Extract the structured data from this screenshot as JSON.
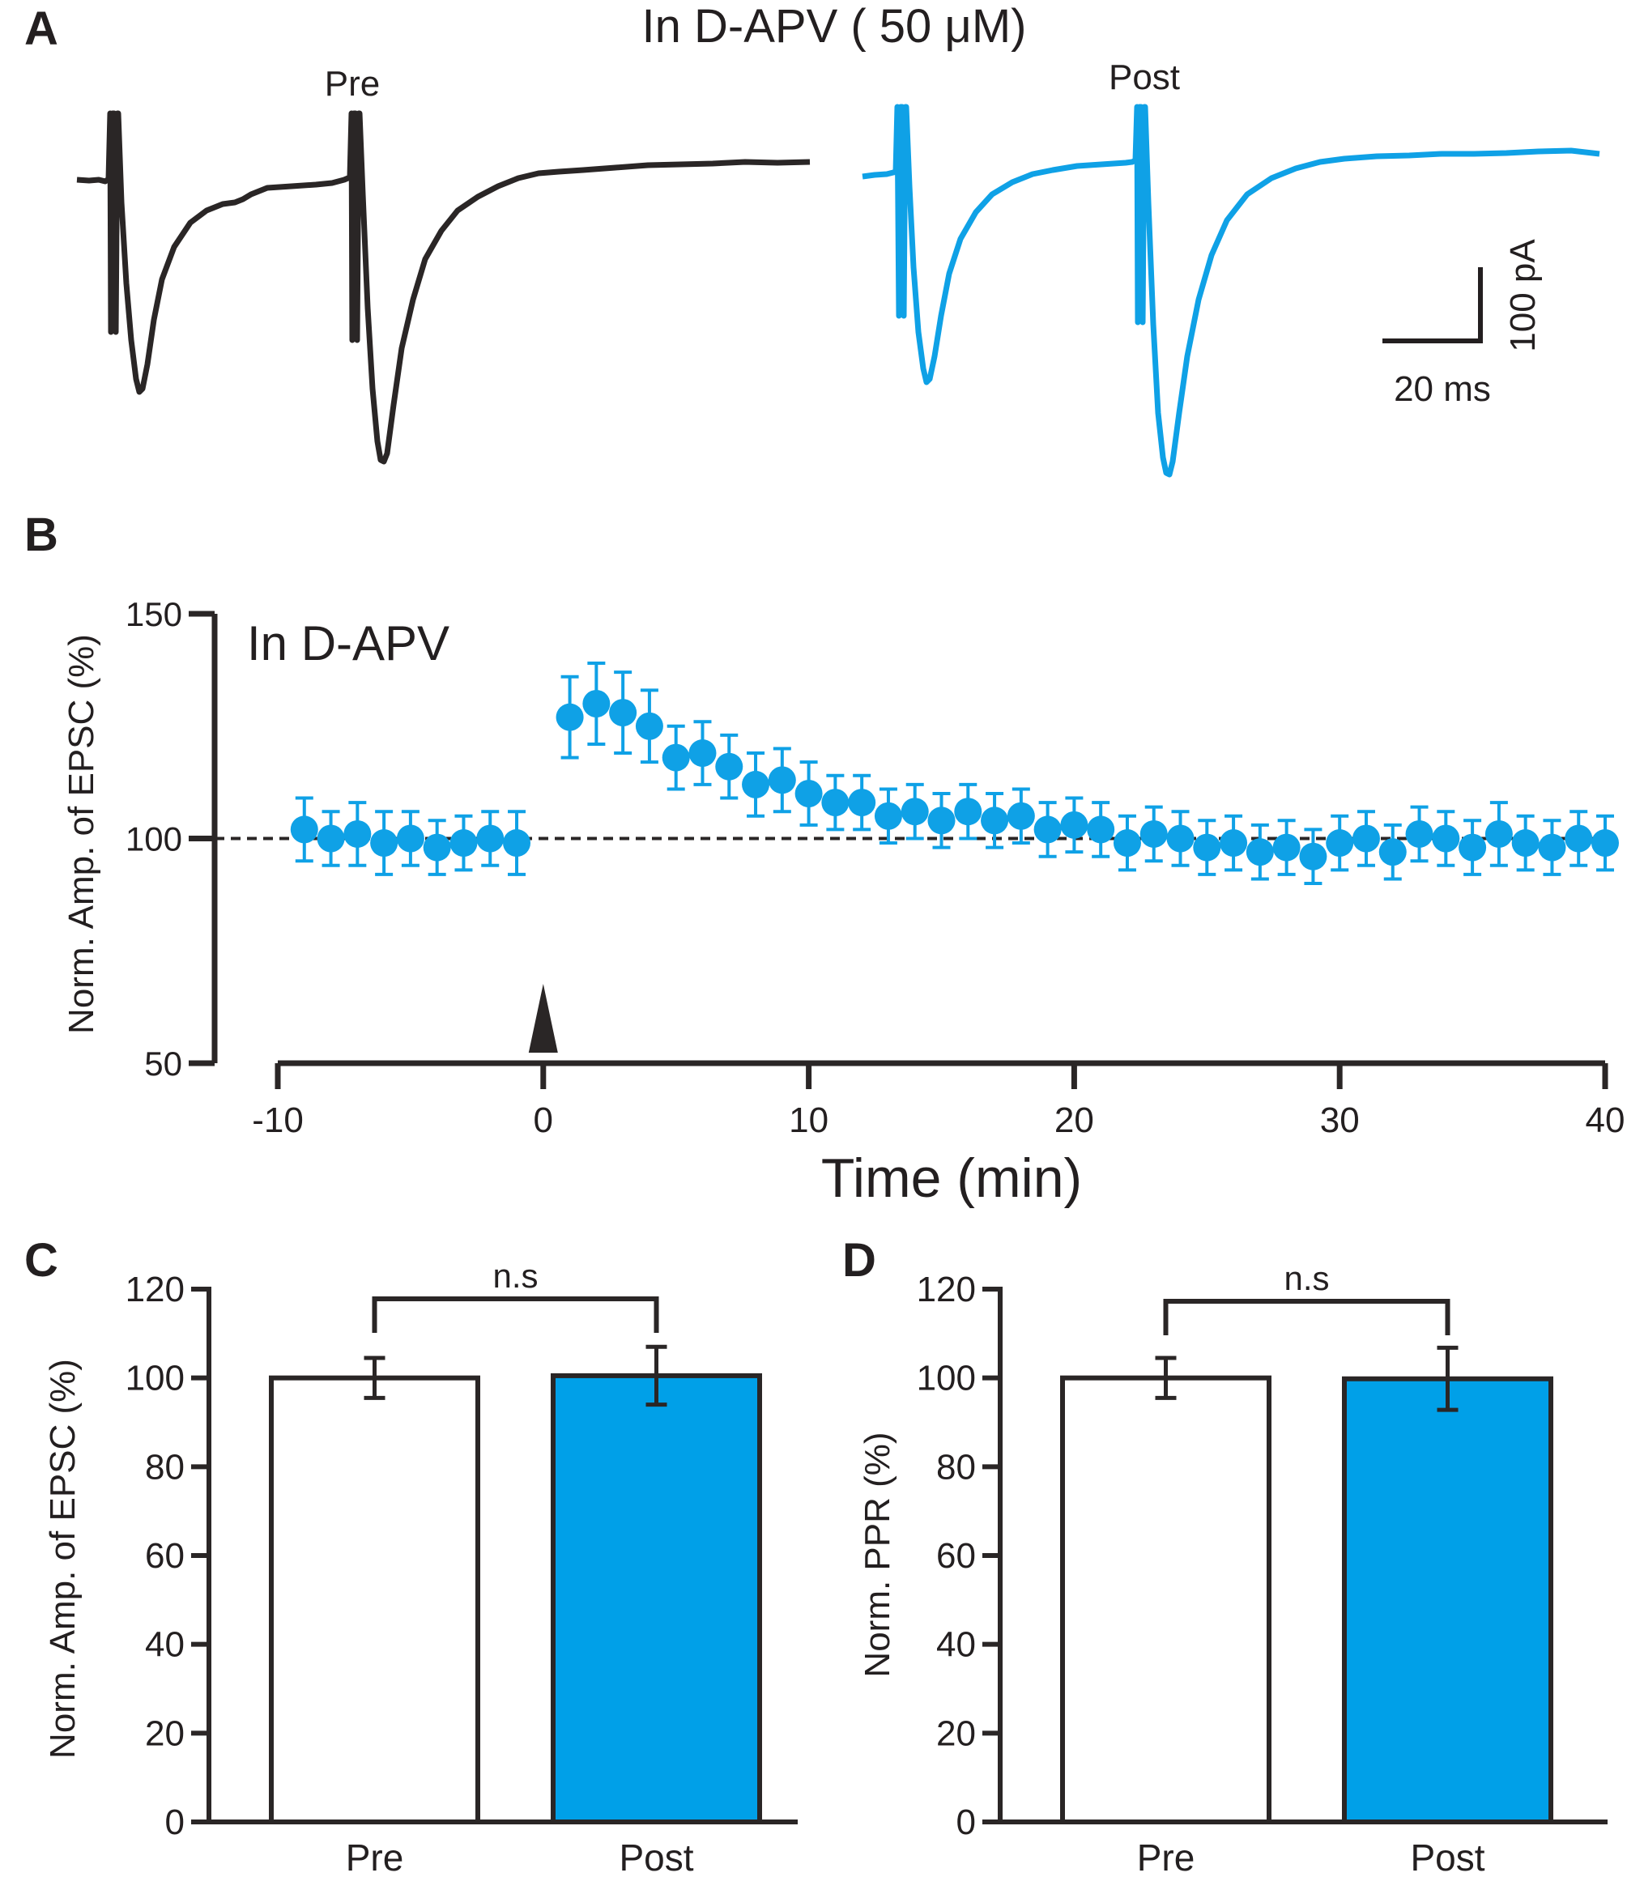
{
  "colors": {
    "ink": "#2a2626",
    "accent": "#0fa1e6",
    "bar_post": "#00a0e8",
    "bar_pre": "#ffffff"
  },
  "panel_a": {
    "letter": "A",
    "title": "In D-APV ( 50 μM)",
    "pre_label": "Pre",
    "post_label": "Post",
    "scalebar_y_label": "100 pA",
    "scalebar_x_label": "20 ms"
  },
  "panel_b": {
    "letter": "B",
    "annotation": "In D-APV"
  },
  "panel_c": {
    "letter": "C",
    "significance": "n.s"
  },
  "panel_d": {
    "letter": "D",
    "significance": "n.s"
  },
  "chart_data": [
    {
      "id": "B",
      "type": "scatter",
      "title": "",
      "xlabel": "Time (min)",
      "ylabel": "Norm. Amp. of EPSC (%)",
      "xlim": [
        -10,
        40
      ],
      "ylim": [
        50,
        150
      ],
      "xticks": [
        "-10",
        "0",
        "10",
        "20",
        "30",
        "40"
      ],
      "yticks": [
        "50",
        "100",
        "150"
      ],
      "reference_line": 100,
      "stimulus_time": 0,
      "series": [
        {
          "name": "In D-APV",
          "x": [
            -9,
            -8,
            -7,
            -6,
            -5,
            -4,
            -3,
            -2,
            -1,
            1,
            2,
            3,
            4,
            5,
            6,
            7,
            8,
            9,
            10,
            11,
            12,
            13,
            14,
            15,
            16,
            17,
            18,
            19,
            20,
            21,
            22,
            23,
            24,
            25,
            26,
            27,
            28,
            29,
            30,
            31,
            32,
            33,
            34,
            35,
            36,
            37,
            38,
            39,
            40
          ],
          "y": [
            102,
            100,
            101,
            99,
            100,
            98,
            99,
            100,
            99,
            127,
            130,
            128,
            125,
            118,
            119,
            116,
            112,
            113,
            110,
            108,
            108,
            105,
            106,
            104,
            106,
            104,
            105,
            102,
            103,
            102,
            99,
            101,
            100,
            98,
            99,
            97,
            98,
            96,
            99,
            100,
            97,
            101,
            100,
            98,
            101,
            99,
            98,
            100,
            99
          ],
          "err": [
            7,
            6,
            7,
            7,
            6,
            6,
            6,
            6,
            7,
            9,
            9,
            9,
            8,
            7,
            7,
            7,
            7,
            7,
            7,
            6,
            6,
            6,
            6,
            6,
            6,
            6,
            6,
            6,
            6,
            6,
            6,
            6,
            6,
            6,
            6,
            6,
            6,
            6,
            6,
            6,
            6,
            6,
            6,
            6,
            7,
            6,
            6,
            6,
            6
          ]
        }
      ]
    },
    {
      "id": "C",
      "type": "bar",
      "categories": [
        "Pre",
        "Post"
      ],
      "values": [
        100,
        100.5
      ],
      "errors": [
        4.5,
        6.5
      ],
      "xlabel": "",
      "ylabel": "Norm. Amp. of EPSC (%)",
      "ylim": [
        0,
        120
      ],
      "yticks": [
        "0",
        "20",
        "40",
        "60",
        "80",
        "100",
        "120"
      ]
    },
    {
      "id": "D",
      "type": "bar",
      "categories": [
        "Pre",
        "Post"
      ],
      "values": [
        100,
        99.8
      ],
      "errors": [
        4.5,
        7
      ],
      "xlabel": "",
      "ylabel": "Norm. PPR (%)",
      "ylim": [
        0,
        120
      ],
      "yticks": [
        "0",
        "20",
        "40",
        "60",
        "80",
        "100",
        "120"
      ]
    }
  ]
}
